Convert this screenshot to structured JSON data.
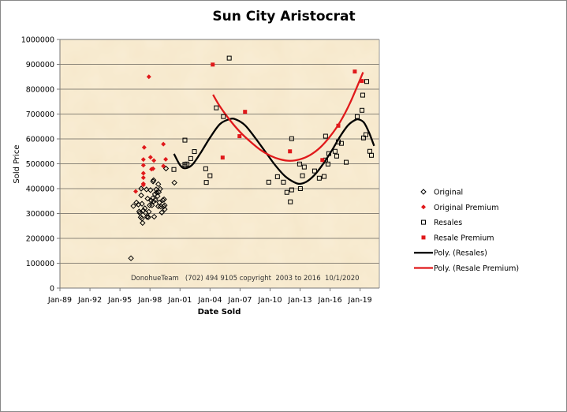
{
  "chart_data": {
    "type": "scatter",
    "title": "Sun City Aristocrat",
    "xlabel": "Date Sold",
    "ylabel": "Sold Price",
    "xlim": [
      1989,
      2020.92
    ],
    "ylim": [
      0,
      1000000
    ],
    "grid": true,
    "legend_placement": "right",
    "x_tick_values": [
      1989,
      1992,
      1995,
      1998,
      2001,
      2004,
      2007,
      2010,
      2013,
      2016,
      2019
    ],
    "x_tick_labels": [
      "Jan-89",
      "Jan-92",
      "Jan-95",
      "Jan-98",
      "Jan-01",
      "Jan-04",
      "Jan-07",
      "Jan-10",
      "Jan-13",
      "Jan-16",
      "Jan-19"
    ],
    "y_tick_labels": [
      "0",
      "100000",
      "200000",
      "300000",
      "400000",
      "500000",
      "600000",
      "700000",
      "800000",
      "900000",
      "1000000"
    ],
    "annotation": "DonohueTeam   (702) 494 9105 copyright  2003 to 2016  10/1/2020",
    "series": [
      {
        "name": "Original",
        "marker": "diamond-open",
        "color": "#000000",
        "x": [
          1996.1,
          1996.34,
          1996.65,
          1996.84,
          1997.12,
          1997.12,
          1997.2,
          1996.92,
          1996.99,
          1997.07,
          1997.2,
          1997.26,
          1997.34,
          1997.49,
          1997.57,
          1997.65,
          1997.71,
          1997.84,
          1997.76,
          1997.89,
          1997.97,
          1998.05,
          1998.12,
          1998.2,
          1998.28,
          1998.36,
          1998.31,
          1998.36,
          1998.42,
          1998.49,
          1998.54,
          1998.62,
          1998.68,
          1998.76,
          1998.83,
          1998.89,
          1998.94,
          1999.02,
          1998.83,
          1999.07,
          1999.18,
          1999.29,
          1999.36,
          1999.41,
          1999.47,
          1999.47,
          1999.6,
          2000.44
        ],
        "y": [
          120000,
          330000,
          344000,
          336000,
          400000,
          373000,
          339000,
          308000,
          302000,
          285000,
          280000,
          262000,
          312000,
          321000,
          302000,
          397000,
          286000,
          285000,
          360000,
          307000,
          333000,
          394000,
          352000,
          333000,
          362000,
          434000,
          429000,
          349000,
          287000,
          378000,
          354000,
          397000,
          384000,
          370000,
          329000,
          386000,
          344000,
          399000,
          418000,
          328000,
          304000,
          354000,
          328000,
          357000,
          317000,
          333000,
          481000,
          424000
        ]
      },
      {
        "name": "Original Premium",
        "marker": "diamond-filled",
        "color": "#e0191b",
        "x": [
          1996.57,
          1997.42,
          1997.34,
          1997.34,
          1997.34,
          1997.34,
          1997.34,
          1997.34,
          1997.89,
          1998.05,
          1998.39,
          1998.15,
          1998.31,
          1999.34,
          1999.34,
          1999.57
        ],
        "y": [
          389000,
          566000,
          517000,
          494000,
          462000,
          444000,
          420000,
          415000,
          850000,
          526000,
          513000,
          478000,
          480000,
          579000,
          491000,
          518000
        ]
      },
      {
        "name": "Resales",
        "marker": "square-open",
        "color": "#000000",
        "x": [
          2000.39,
          2001.49,
          2001.49,
          2001.49,
          2001.7,
          2002.07,
          2002.44,
          2003.57,
          2003.63,
          2004.0,
          2004.63,
          2005.34,
          2005.92,
          2009.87,
          2010.74,
          2011.34,
          2011.68,
          2012.03,
          2012.16,
          2012.16,
          2012.95,
          2013.03,
          2013.24,
          2013.42,
          2014.45,
          2014.92,
          2015.4,
          2015.55,
          2015.55,
          2015.79,
          2015.87,
          2016.5,
          2016.66,
          2016.82,
          2017.13,
          2017.61,
          2018.71,
          2019.19,
          2019.26,
          2019.34,
          2019.58,
          2019.66,
          2019.97,
          2020.13
        ],
        "y": [
          477000,
          595000,
          498000,
          490000,
          499000,
          521000,
          549000,
          480000,
          425000,
          452000,
          725000,
          690000,
          925000,
          426000,
          448000,
          426000,
          385000,
          347000,
          601000,
          395000,
          499000,
          400000,
          452000,
          487000,
          471000,
          442000,
          449000,
          611000,
          515000,
          499000,
          541000,
          550000,
          531000,
          588000,
          582000,
          506000,
          690000,
          715000,
          776000,
          604000,
          617000,
          831000,
          550000,
          534000
        ]
      },
      {
        "name": "Resale Premium",
        "marker": "square-filled",
        "color": "#e0191b",
        "x": [
          2004.27,
          2005.26,
          2006.95,
          2007.5,
          2011.99,
          2015.23,
          2016.82,
          2018.47,
          2019.18
        ],
        "y": [
          899000,
          525000,
          611000,
          709000,
          550000,
          515000,
          653000,
          871000,
          833000
        ]
      },
      {
        "name": "Poly. (Resales)",
        "marker": "line",
        "color": "#000000",
        "x": [
          2000.4,
          2001.0,
          2001.5,
          2002.2,
          2003.0,
          2004.0,
          2005.0,
          2006.0,
          2006.6,
          2007.5,
          2008.5,
          2009.5,
          2010.5,
          2011.5,
          2012.5,
          2013.1,
          2013.8,
          2014.6,
          2015.4,
          2016.2,
          2017.0,
          2017.8,
          2018.5,
          2018.9,
          2019.4,
          2019.9,
          2020.4
        ],
        "y": [
          540000,
          495000,
          482000,
          495000,
          540000,
          605000,
          660000,
          680000,
          678000,
          655000,
          605000,
          550000,
          495000,
          450000,
          424000,
          420000,
          432000,
          462000,
          505000,
          555000,
          610000,
          655000,
          676000,
          678000,
          665000,
          625000,
          572000
        ]
      },
      {
        "name": "Poly. (Resale Premium)",
        "marker": "line",
        "color": "#e0191b",
        "x": [
          2004.3,
          2005.0,
          2006.0,
          2007.0,
          2008.0,
          2009.0,
          2010.0,
          2011.0,
          2012.0,
          2013.0,
          2014.0,
          2015.0,
          2016.0,
          2017.0,
          2018.0,
          2019.3
        ],
        "y": [
          778000,
          730000,
          675000,
          628000,
          590000,
          557000,
          533000,
          518000,
          512000,
          518000,
          535000,
          565000,
          610000,
          668000,
          745000,
          868000
        ]
      }
    ]
  }
}
